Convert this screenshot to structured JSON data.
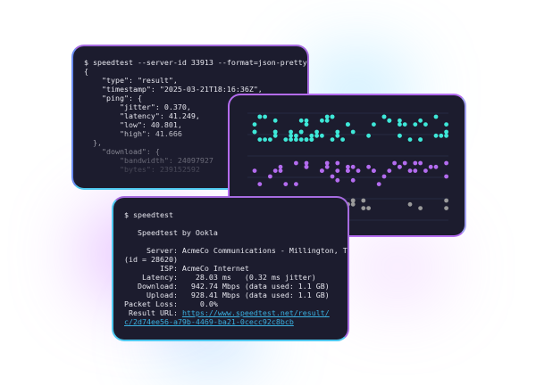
{
  "json_terminal": {
    "lines": [
      "$ speedtest --server-id 33913 --format=json-pretty",
      "{",
      "    \"type\": \"result\",",
      "    \"timestamp\": \"2025-03-21T18:16:36Z\",",
      "    \"ping\": {",
      "        \"jitter\": 0.370,",
      "        \"latency\": 41.249,",
      "        \"low\": 40.801,",
      "        \"high\": 41.666",
      "  },",
      "    \"download\": {",
      "        \"bandwidth\": 24097927",
      "        \"bytes\": 239152592"
    ]
  },
  "dot_plot": {
    "colors": {
      "top": "#3ee8d8",
      "middle": "#b46cf0",
      "bottom": "#9a9a9a"
    }
  },
  "speedtest_terminal": {
    "command": "$ speedtest",
    "heading": "   Speedtest by Ookla",
    "lines": [
      "     Server: AcmeCo Communications - Millington, TN",
      "(id = 28620)",
      "        ISP: AcmeCo Internet",
      "    Latency:    28.03 ms   (0.32 ms jitter)",
      "   Download:   942.74 Mbps (data used: 1.1 GB)",
      "     Upload:   928.41 Mbps (data used: 1.1 GB)",
      "Packet Loss:     0.0%"
    ],
    "result_label": " Result URL: ",
    "result_url_1": "https://www.speedtest.net/result/",
    "result_url_2": "c/2d74ee56-a79b-4469-ba21-0cecc92c8bcb",
    "link_color": "#3ab0e0"
  }
}
